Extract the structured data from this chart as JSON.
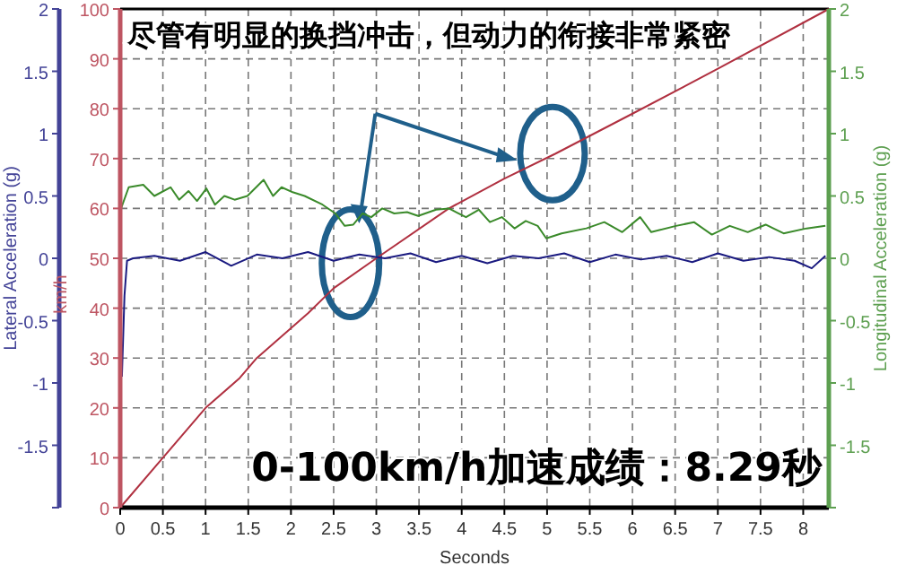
{
  "chart_data": {
    "type": "line",
    "xlabel": "Seconds",
    "ylabel": "km/h",
    "y2label": "Longitudinal Acceleration (g)",
    "y3label": "Lateral Acceleration (g)",
    "annotations": [
      "尽管有明显的换挡冲击，但动力的衔接非常紧密",
      "0-100km/h加速成绩：8.29秒"
    ],
    "xlim": [
      0,
      8.3
    ],
    "xticks": [
      0,
      0.5,
      1,
      1.5,
      2,
      2.5,
      3,
      3.5,
      4,
      4.5,
      5,
      5.5,
      6,
      6.5,
      7,
      7.5,
      8
    ],
    "ylim": [
      0,
      100
    ],
    "yticks": [
      0,
      10,
      20,
      30,
      40,
      50,
      60,
      70,
      80,
      90,
      100
    ],
    "y2lim": [
      -2,
      2
    ],
    "y2ticks": [
      {
        "value": -2,
        "label": null
      },
      -1.5,
      -1,
      -0.5,
      0,
      0.5,
      1,
      1.5,
      2
    ],
    "y3lim": [
      -2,
      2
    ],
    "y3ticks": [
      {
        "value": -2,
        "label": null
      },
      -1.5,
      -1,
      -0.5,
      0,
      0.5,
      1,
      1.5,
      2
    ],
    "grid": true,
    "marker": "none",
    "line_style": "solid",
    "series": [
      {
        "color": "#b03040",
        "x": [
          0,
          0.5,
          1,
          1.4,
          1.6,
          2.2,
          2.5,
          3,
          3.85,
          4.5,
          5.1,
          6,
          7,
          8.3
        ],
        "values": [
          0,
          10,
          20,
          26,
          30,
          39,
          44,
          50,
          60,
          66,
          71,
          79,
          88,
          100
        ]
      },
      {
        "color": "#3a8a2a",
        "axis": "y2",
        "x": [
          0,
          0.1,
          0.27,
          0.4,
          0.59,
          0.69,
          0.8,
          0.9,
          1.01,
          1.11,
          1.22,
          1.34,
          1.49,
          1.68,
          1.79,
          1.89,
          2.02,
          2.16,
          2.37,
          2.52,
          2.63,
          2.73,
          2.84,
          2.94,
          3.07,
          3.21,
          3.36,
          3.49,
          3.7,
          3.85,
          4.05,
          4.2,
          4.33,
          4.47,
          4.62,
          4.75,
          4.89,
          4.99,
          5.17,
          5.46,
          5.67,
          5.88,
          6.09,
          6.22,
          6.51,
          6.72,
          6.93,
          7.14,
          7.35,
          7.56,
          7.77,
          8.04,
          8.26
        ],
        "values": [
          0.38,
          0.57,
          0.59,
          0.5,
          0.57,
          0.47,
          0.54,
          0.46,
          0.56,
          0.43,
          0.5,
          0.47,
          0.5,
          0.63,
          0.5,
          0.57,
          0.53,
          0.5,
          0.43,
          0.36,
          0.26,
          0.27,
          0.36,
          0.33,
          0.4,
          0.36,
          0.37,
          0.34,
          0.39,
          0.4,
          0.33,
          0.39,
          0.29,
          0.33,
          0.24,
          0.3,
          0.26,
          0.16,
          0.2,
          0.24,
          0.29,
          0.21,
          0.33,
          0.21,
          0.26,
          0.29,
          0.19,
          0.26,
          0.21,
          0.27,
          0.2,
          0.24,
          0.26
        ]
      },
      {
        "color": "#1a1a80",
        "axis": "y3",
        "x": [
          0.02,
          0.05,
          0.08,
          0.15,
          0.4,
          0.7,
          1.0,
          1.3,
          1.6,
          1.9,
          2.2,
          2.5,
          2.8,
          3.1,
          3.4,
          3.7,
          4.0,
          4.3,
          4.6,
          4.9,
          5.2,
          5.5,
          5.8,
          6.1,
          6.4,
          6.7,
          7.0,
          7.3,
          7.6,
          7.9,
          8.1,
          8.26
        ],
        "values": [
          -0.95,
          -0.3,
          -0.02,
          0.0,
          0.02,
          -0.02,
          0.05,
          -0.06,
          0.03,
          0.0,
          0.05,
          -0.02,
          0.03,
          0.0,
          0.04,
          -0.03,
          0.02,
          -0.04,
          0.02,
          0.0,
          0.04,
          -0.03,
          0.03,
          -0.01,
          0.02,
          -0.03,
          0.04,
          -0.02,
          0.01,
          -0.02,
          -0.08,
          0.02
        ]
      }
    ]
  }
}
